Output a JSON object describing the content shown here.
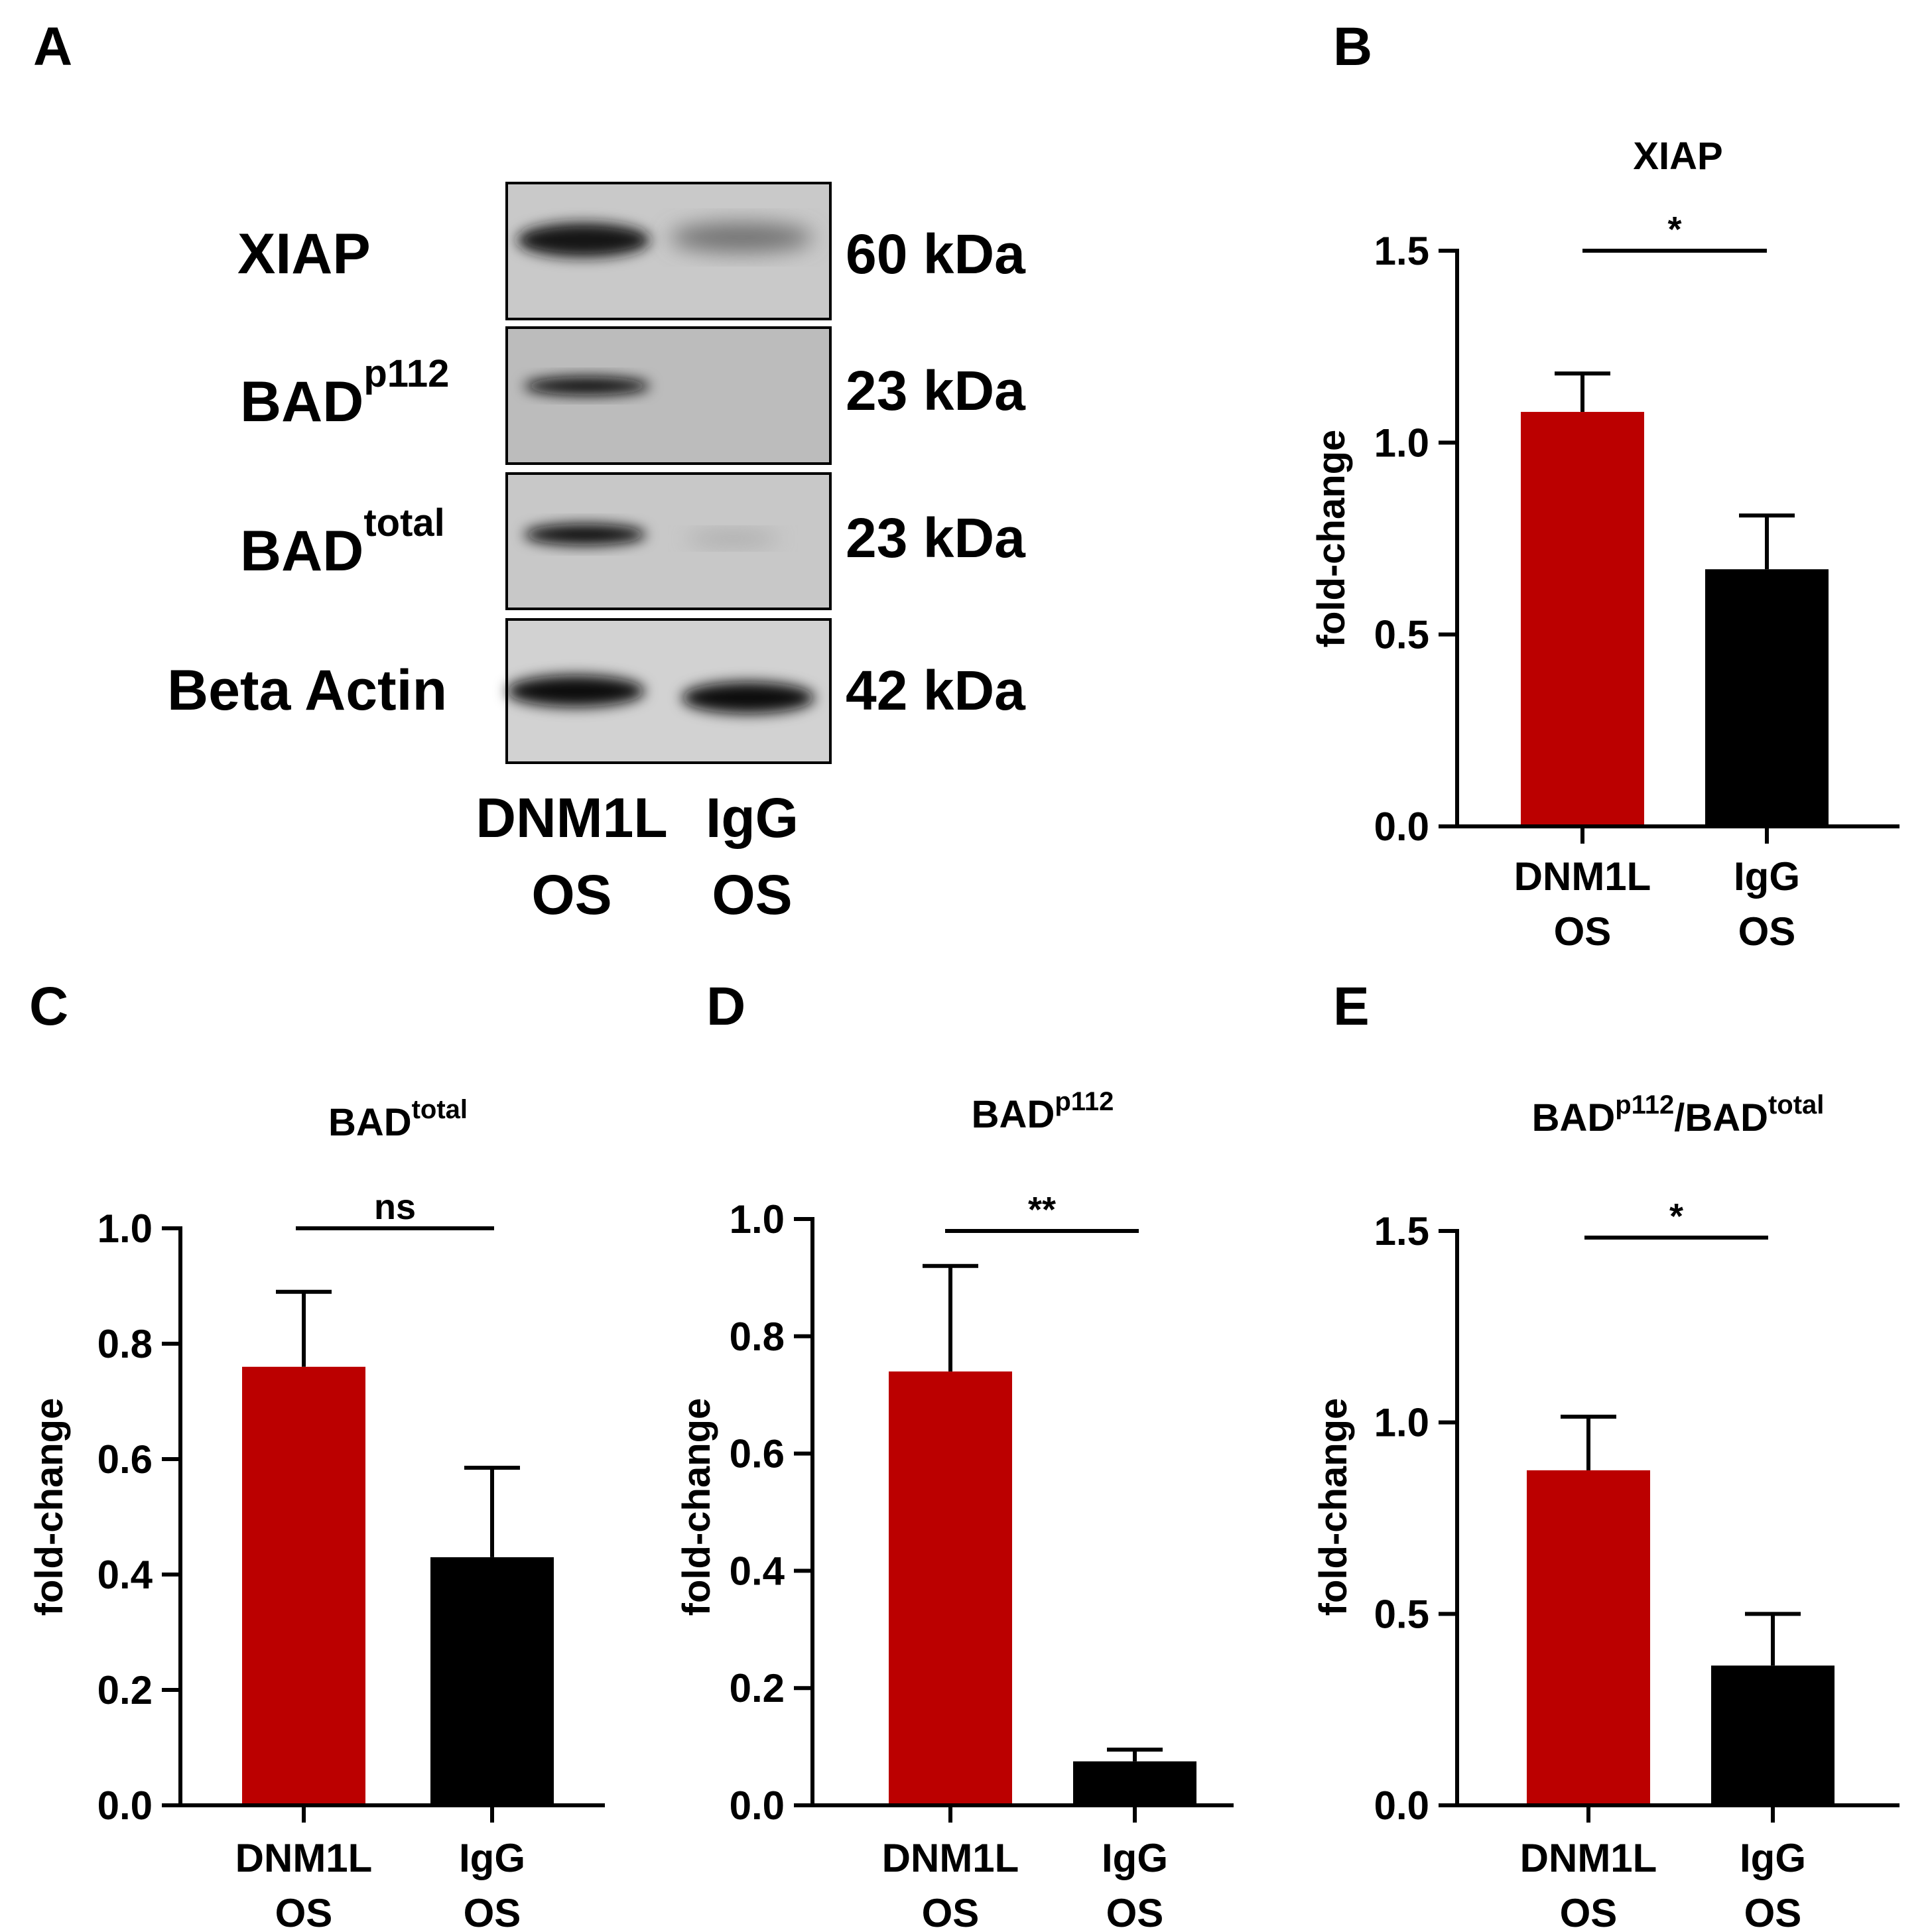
{
  "panel_letters": {
    "a": "A",
    "b": "B",
    "c": "C",
    "d": "D",
    "e": "E"
  },
  "blot": {
    "rows": [
      {
        "name": "XIAP",
        "sup": "",
        "kda": "60 kDa"
      },
      {
        "name": "BAD",
        "sup": "p112",
        "kda": "23 kDa"
      },
      {
        "name": "BAD",
        "sup": "total",
        "kda": "23 kDa"
      },
      {
        "name": "Beta Actin",
        "sup": "",
        "kda": "42 kDa"
      }
    ],
    "lanes": [
      {
        "line1": "DNM1L",
        "line2": "OS"
      },
      {
        "line1": "IgG",
        "line2": "OS"
      }
    ]
  },
  "colors": {
    "dnm1l": "#bb0000",
    "igg": "#000000"
  },
  "chart_data": [
    {
      "panel": "B",
      "type": "bar",
      "title": "XIAP",
      "title_sup": "",
      "ylabel": "fold-change",
      "categories": [
        {
          "line1": "DNM1L",
          "line2": "OS"
        },
        {
          "line1": "IgG",
          "line2": "OS"
        }
      ],
      "values": [
        1.08,
        0.67
      ],
      "errors": [
        0.1,
        0.14
      ],
      "ylim": [
        0,
        1.5
      ],
      "ticks": [
        "0.0",
        "0.5",
        "1.0",
        "1.5"
      ],
      "significance": "*"
    },
    {
      "panel": "C",
      "type": "bar",
      "title": "BAD",
      "title_sup": "total",
      "ylabel": "fold-change",
      "categories": [
        {
          "line1": "DNM1L",
          "line2": "OS"
        },
        {
          "line1": "IgG",
          "line2": "OS"
        }
      ],
      "values": [
        0.76,
        0.43
      ],
      "errors": [
        0.13,
        0.155
      ],
      "ylim": [
        0,
        1.0
      ],
      "ticks": [
        "0.0",
        "0.2",
        "0.4",
        "0.6",
        "0.8",
        "1.0"
      ],
      "significance": "ns"
    },
    {
      "panel": "D",
      "type": "bar",
      "title": "BAD",
      "title_sup": "p112",
      "ylabel": "fold-change",
      "categories": [
        {
          "line1": "DNM1L",
          "line2": "OS"
        },
        {
          "line1": "IgG",
          "line2": "OS"
        }
      ],
      "values": [
        0.74,
        0.075
      ],
      "errors": [
        0.18,
        0.02
      ],
      "ylim": [
        0,
        1.0
      ],
      "ticks": [
        "0.0",
        "0.2",
        "0.4",
        "0.6",
        "0.8",
        "1.0"
      ],
      "significance": "**"
    },
    {
      "panel": "E",
      "type": "bar",
      "title": "BAD",
      "title_sup": "p112",
      "title2": "/BAD",
      "title2_sup": "total",
      "ylabel": "fold-change",
      "categories": [
        {
          "line1": "DNM1L",
          "line2": "OS"
        },
        {
          "line1": "IgG",
          "line2": "OS"
        }
      ],
      "values": [
        0.875,
        0.365
      ],
      "errors": [
        0.14,
        0.135
      ],
      "ylim": [
        0,
        1.5
      ],
      "ticks": [
        "0.0",
        "0.5",
        "1.0",
        "1.5"
      ],
      "significance": "*"
    }
  ]
}
